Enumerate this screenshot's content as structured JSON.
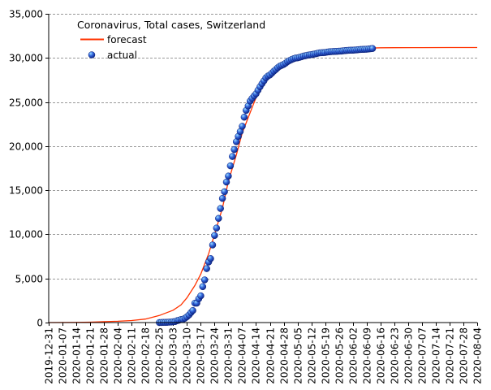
{
  "chart_data": {
    "type": "line",
    "title": "Coronavirus, Total cases, Switzerland",
    "xlabel": "",
    "ylabel": "",
    "ylim": [
      0,
      35000
    ],
    "xlim": [
      "2019-12-31",
      "2020-08-04"
    ],
    "y_ticks": [
      0,
      5000,
      10000,
      15000,
      20000,
      25000,
      30000,
      35000
    ],
    "y_tick_labels": [
      "0",
      "5,000",
      "10,000",
      "15,000",
      "20,000",
      "25,000",
      "30,000",
      "35,000"
    ],
    "x_tick_labels": [
      "2019-12-31",
      "2020-01-07",
      "2020-01-14",
      "2020-01-21",
      "2020-01-28",
      "2020-02-04",
      "2020-02-11",
      "2020-02-18",
      "2020-02-25",
      "2020-03-03",
      "2020-03-10",
      "2020-03-17",
      "2020-03-24",
      "2020-03-31",
      "2020-04-07",
      "2020-04-14",
      "2020-04-21",
      "2020-04-28",
      "2020-05-05",
      "2020-05-12",
      "2020-05-19",
      "2020-05-26",
      "2020-06-02",
      "2020-06-09",
      "2020-06-16",
      "2020-06-23",
      "2020-06-30",
      "2020-07-07",
      "2020-07-14",
      "2020-07-21",
      "2020-07-28",
      "2020-08-04"
    ],
    "grid": "horizontal dashed",
    "legend": "top-left",
    "colors": {
      "forecast": "#ff3300",
      "actual": "#1a3fc0",
      "actual_highlight": "#66ccff",
      "grid": "#999999",
      "axis": "#000000"
    },
    "series": [
      {
        "name": "forecast",
        "kind": "line",
        "x": [
          "2019-12-31",
          "2020-01-14",
          "2020-01-21",
          "2020-01-28",
          "2020-02-04",
          "2020-02-11",
          "2020-02-18",
          "2020-02-25",
          "2020-03-03",
          "2020-03-07",
          "2020-03-10",
          "2020-03-14",
          "2020-03-17",
          "2020-03-21",
          "2020-03-24",
          "2020-03-28",
          "2020-03-31",
          "2020-04-04",
          "2020-04-07",
          "2020-04-11",
          "2020-04-14",
          "2020-04-18",
          "2020-04-21",
          "2020-04-25",
          "2020-04-28",
          "2020-05-02",
          "2020-05-05",
          "2020-05-12",
          "2020-05-19",
          "2020-05-26",
          "2020-06-02",
          "2020-06-09",
          "2020-06-16",
          "2020-06-23",
          "2020-07-07",
          "2020-07-21",
          "2020-08-04"
        ],
        "values": [
          0,
          20,
          50,
          100,
          150,
          230,
          400,
          800,
          1400,
          2000,
          2800,
          4200,
          5500,
          7800,
          10000,
          13000,
          16000,
          19000,
          21500,
          23800,
          25500,
          27000,
          28000,
          28800,
          29400,
          29900,
          30200,
          30600,
          30850,
          30980,
          31050,
          31100,
          31150,
          31160,
          31170,
          31175,
          31180
        ]
      },
      {
        "name": "actual",
        "kind": "scatter",
        "x": [
          "2020-02-25",
          "2020-02-26",
          "2020-02-27",
          "2020-02-28",
          "2020-02-29",
          "2020-03-01",
          "2020-03-02",
          "2020-03-03",
          "2020-03-04",
          "2020-03-05",
          "2020-03-06",
          "2020-03-07",
          "2020-03-08",
          "2020-03-09",
          "2020-03-10",
          "2020-03-11",
          "2020-03-12",
          "2020-03-13",
          "2020-03-14",
          "2020-03-15",
          "2020-03-16",
          "2020-03-17",
          "2020-03-18",
          "2020-03-19",
          "2020-03-20",
          "2020-03-21",
          "2020-03-22",
          "2020-03-23",
          "2020-03-24",
          "2020-03-25",
          "2020-03-26",
          "2020-03-27",
          "2020-03-28",
          "2020-03-29",
          "2020-03-30",
          "2020-03-31",
          "2020-04-01",
          "2020-04-02",
          "2020-04-03",
          "2020-04-04",
          "2020-04-05",
          "2020-04-06",
          "2020-04-07",
          "2020-04-08",
          "2020-04-09",
          "2020-04-10",
          "2020-04-11",
          "2020-04-12",
          "2020-04-13",
          "2020-04-14",
          "2020-04-15",
          "2020-04-16",
          "2020-04-17",
          "2020-04-18",
          "2020-04-19",
          "2020-04-20",
          "2020-04-21",
          "2020-04-22",
          "2020-04-23",
          "2020-04-24",
          "2020-04-25",
          "2020-04-26",
          "2020-04-27",
          "2020-04-28",
          "2020-04-29",
          "2020-04-30",
          "2020-05-01",
          "2020-05-02",
          "2020-05-03",
          "2020-05-04",
          "2020-05-05",
          "2020-05-06",
          "2020-05-07",
          "2020-05-08",
          "2020-05-09",
          "2020-05-10",
          "2020-05-11",
          "2020-05-12",
          "2020-05-13",
          "2020-05-14",
          "2020-05-15",
          "2020-05-16",
          "2020-05-17",
          "2020-05-18",
          "2020-05-19",
          "2020-05-20",
          "2020-05-21",
          "2020-05-22",
          "2020-05-23",
          "2020-05-24",
          "2020-05-25",
          "2020-05-26",
          "2020-05-27",
          "2020-05-28",
          "2020-05-29",
          "2020-05-30",
          "2020-05-31",
          "2020-06-01",
          "2020-06-02",
          "2020-06-03",
          "2020-06-04",
          "2020-06-05",
          "2020-06-06",
          "2020-06-07",
          "2020-06-08",
          "2020-06-09",
          "2020-06-10",
          "2020-06-11",
          "2020-06-12"
        ],
        "values": [
          1,
          8,
          15,
          18,
          27,
          42,
          56,
          90,
          114,
          214,
          268,
          337,
          374,
          491,
          652,
          858,
          1125,
          1359,
          2200,
          2200,
          2700,
          3028,
          4075,
          4840,
          6113,
          6863,
          7245,
          8795,
          9877,
          10714,
          11811,
          12928,
          14076,
          14829,
          15922,
          16605,
          17768,
          18827,
          19606,
          20505,
          21100,
          21657,
          22253,
          23280,
          24051,
          24551,
          25107,
          25415,
          25688,
          25936,
          26336,
          26732,
          27078,
          27404,
          27740,
          27944,
          28063,
          28268,
          28496,
          28677,
          28894,
          29061,
          29164,
          29264,
          29407,
          29586,
          29705,
          29817,
          29905,
          29981,
          30009,
          30060,
          30126,
          30207,
          30251,
          30305,
          30344,
          30380,
          30413,
          30463,
          30514,
          30572,
          30587,
          30597,
          30618,
          30658,
          30694,
          30707,
          30725,
          30736,
          30746,
          30761,
          30776,
          30796,
          30828,
          30845,
          30862,
          30871,
          30874,
          30893,
          30913,
          30936,
          30956,
          30965,
          30972,
          30988,
          31011,
          31044,
          31063
        ]
      }
    ]
  }
}
